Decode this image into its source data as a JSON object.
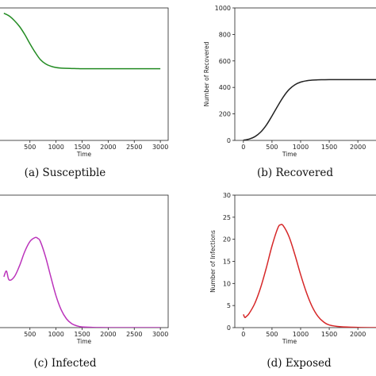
{
  "chart_data": [
    {
      "id": "susceptible",
      "type": "line",
      "caption": "(a) Susceptible",
      "xlabel": "Time",
      "ylabel": "",
      "x_ticks": [
        500,
        1000,
        1500,
        2000,
        2500,
        3000
      ],
      "x_tick_labels": [
        "500",
        "1000",
        "1500",
        "2000",
        "2500",
        "3000"
      ],
      "y_ticks": [],
      "xlim": [
        -150,
        3150
      ],
      "ylim": [
        0,
        1000
      ],
      "color": "#228b22",
      "series": [
        {
          "x": [
            0,
            100,
            200,
            300,
            400,
            500,
            600,
            700,
            800,
            900,
            1000,
            1100,
            1200,
            1300,
            1400,
            1500,
            1750,
            2000,
            2500,
            3000
          ],
          "y": [
            960,
            940,
            905,
            860,
            800,
            730,
            665,
            610,
            578,
            560,
            550,
            546,
            544,
            543,
            542,
            541,
            541,
            541,
            541,
            541
          ]
        }
      ]
    },
    {
      "id": "recovered",
      "type": "line",
      "caption": "(b) Recovered",
      "xlabel": "Time",
      "ylabel": "Number of Recovered",
      "x_ticks": [
        0,
        500,
        1000,
        1500,
        2000
      ],
      "x_tick_labels": [
        "0",
        "500",
        "1000",
        "1500",
        "2000"
      ],
      "y_ticks": [
        0,
        200,
        400,
        600,
        800,
        1000
      ],
      "y_tick_labels": [
        "0",
        "200",
        "400",
        "600",
        "800",
        "1000"
      ],
      "xlim": [
        -150,
        2400
      ],
      "ylim": [
        0,
        1000
      ],
      "color": "#222222",
      "series": [
        {
          "x": [
            0,
            100,
            200,
            300,
            400,
            500,
            600,
            700,
            800,
            900,
            1000,
            1100,
            1200,
            1300,
            1400,
            1500,
            1700,
            2000,
            2400
          ],
          "y": [
            2,
            10,
            28,
            62,
            115,
            185,
            260,
            330,
            385,
            420,
            440,
            450,
            455,
            457,
            458,
            459,
            459,
            459,
            459
          ]
        }
      ]
    },
    {
      "id": "infected",
      "type": "line",
      "caption": "(c) Infected",
      "xlabel": "Time",
      "ylabel": "",
      "x_ticks": [
        500,
        1000,
        1500,
        2000,
        2500,
        3000
      ],
      "x_tick_labels": [
        "500",
        "1000",
        "1500",
        "2000",
        "2500",
        "3000"
      ],
      "y_ticks": [],
      "xlim": [
        -150,
        3150
      ],
      "ylim": [
        0,
        30
      ],
      "color": "#bb33bb",
      "series": [
        {
          "x": [
            0,
            50,
            100,
            200,
            300,
            400,
            500,
            600,
            650,
            700,
            800,
            900,
            1000,
            1100,
            1200,
            1300,
            1400,
            1500,
            1700,
            2000,
            2500,
            3000
          ],
          "y": [
            11.5,
            12.8,
            10.8,
            11.5,
            14.0,
            17.2,
            19.5,
            20.4,
            20.2,
            19.5,
            16.0,
            11.5,
            7.2,
            4.0,
            2.0,
            0.9,
            0.4,
            0.15,
            0.05,
            0.01,
            0,
            0
          ]
        }
      ]
    },
    {
      "id": "exposed",
      "type": "line",
      "caption": "(d) Exposed",
      "xlabel": "Time",
      "ylabel": "Number of Infections",
      "x_ticks": [
        0,
        500,
        1000,
        1500,
        2000
      ],
      "x_tick_labels": [
        "0",
        "500",
        "1000",
        "1500",
        "2000"
      ],
      "y_ticks": [
        0,
        5,
        10,
        15,
        20,
        25,
        30
      ],
      "y_tick_labels": [
        "0",
        "5",
        "10",
        "15",
        "20",
        "25",
        "30"
      ],
      "xlim": [
        -150,
        2400
      ],
      "ylim": [
        0,
        30
      ],
      "color": "#d62728",
      "series": [
        {
          "x": [
            0,
            25,
            50,
            100,
            200,
            300,
            400,
            500,
            600,
            650,
            700,
            800,
            900,
            1000,
            1100,
            1200,
            1300,
            1400,
            1500,
            1700,
            2000,
            2400
          ],
          "y": [
            3.0,
            2.3,
            2.5,
            3.2,
            5.5,
            9.0,
            13.5,
            18.5,
            22.5,
            23.3,
            23.0,
            20.5,
            16.5,
            12.0,
            8.0,
            4.8,
            2.6,
            1.3,
            0.6,
            0.2,
            0.05,
            0
          ]
        }
      ]
    }
  ]
}
